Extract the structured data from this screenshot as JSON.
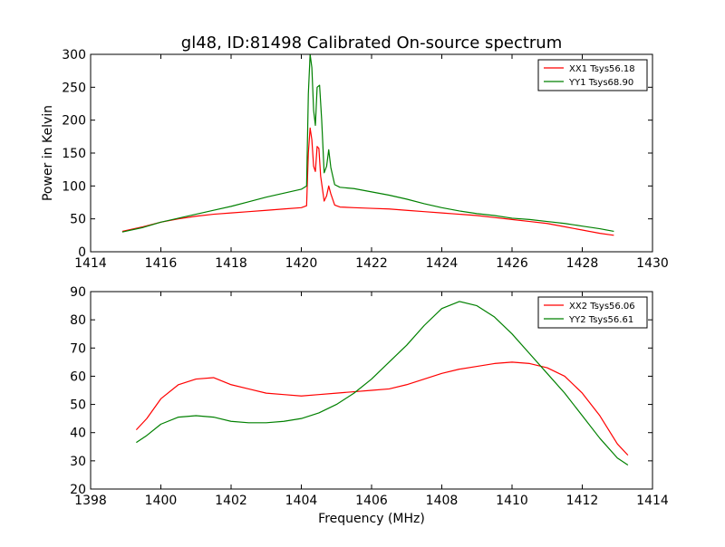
{
  "figure_title": "gl48, ID:81498 Calibrated On-source spectrum",
  "chart_data": [
    {
      "type": "line",
      "title": "gl48, ID:81498 Calibrated On-source spectrum",
      "xlabel": "",
      "ylabel": "Power in Kelvin",
      "xlim": [
        1414,
        1430
      ],
      "ylim": [
        0,
        300
      ],
      "xticks": [
        "1414",
        "1416",
        "1418",
        "1420",
        "1422",
        "1424",
        "1426",
        "1428",
        "1430"
      ],
      "yticks": [
        "0",
        "50",
        "100",
        "150",
        "200",
        "250",
        "300"
      ],
      "grid": false,
      "legend_position": "top-right",
      "series": [
        {
          "name": "XX1 Tsys56.18",
          "color": "#ff0000",
          "points": [
            [
              1414.9,
              31
            ],
            [
              1415.5,
              38
            ],
            [
              1416.0,
              45
            ],
            [
              1416.5,
              50
            ],
            [
              1417.0,
              54
            ],
            [
              1417.5,
              57
            ],
            [
              1418.0,
              59
            ],
            [
              1418.5,
              61
            ],
            [
              1419.0,
              63
            ],
            [
              1419.5,
              65
            ],
            [
              1420.0,
              67
            ],
            [
              1420.15,
              70
            ],
            [
              1420.2,
              150
            ],
            [
              1420.25,
              188
            ],
            [
              1420.3,
              170
            ],
            [
              1420.35,
              130
            ],
            [
              1420.4,
              122
            ],
            [
              1420.45,
              160
            ],
            [
              1420.5,
              157
            ],
            [
              1420.55,
              115
            ],
            [
              1420.65,
              77
            ],
            [
              1420.72,
              85
            ],
            [
              1420.78,
              100
            ],
            [
              1420.84,
              88
            ],
            [
              1420.95,
              71
            ],
            [
              1421.1,
              68
            ],
            [
              1421.5,
              67
            ],
            [
              1422.0,
              66
            ],
            [
              1422.5,
              65
            ],
            [
              1423.0,
              63
            ],
            [
              1423.5,
              61
            ],
            [
              1424.0,
              59
            ],
            [
              1424.5,
              57
            ],
            [
              1425.0,
              55
            ],
            [
              1425.5,
              52
            ],
            [
              1426.0,
              49
            ],
            [
              1426.5,
              46
            ],
            [
              1427.0,
              43
            ],
            [
              1427.5,
              38
            ],
            [
              1428.0,
              33
            ],
            [
              1428.5,
              28
            ],
            [
              1428.9,
              25
            ]
          ]
        },
        {
          "name": "YY1 Tsys68.90",
          "color": "#008000",
          "points": [
            [
              1414.9,
              30
            ],
            [
              1415.5,
              37
            ],
            [
              1416.0,
              45
            ],
            [
              1416.5,
              51
            ],
            [
              1417.0,
              57
            ],
            [
              1417.5,
              63
            ],
            [
              1418.0,
              69
            ],
            [
              1418.5,
              76
            ],
            [
              1419.0,
              83
            ],
            [
              1419.5,
              89
            ],
            [
              1420.0,
              95
            ],
            [
              1420.15,
              100
            ],
            [
              1420.2,
              240
            ],
            [
              1420.25,
              300
            ],
            [
              1420.3,
              280
            ],
            [
              1420.35,
              215
            ],
            [
              1420.4,
              192
            ],
            [
              1420.45,
              250
            ],
            [
              1420.52,
              253
            ],
            [
              1420.58,
              200
            ],
            [
              1420.65,
              120
            ],
            [
              1420.72,
              130
            ],
            [
              1420.78,
              155
            ],
            [
              1420.84,
              128
            ],
            [
              1420.95,
              102
            ],
            [
              1421.1,
              98
            ],
            [
              1421.5,
              96
            ],
            [
              1422.0,
              91
            ],
            [
              1422.5,
              86
            ],
            [
              1423.0,
              80
            ],
            [
              1423.5,
              73
            ],
            [
              1424.0,
              67
            ],
            [
              1424.5,
              62
            ],
            [
              1425.0,
              58
            ],
            [
              1425.5,
              55
            ],
            [
              1426.0,
              51
            ],
            [
              1426.5,
              49
            ],
            [
              1427.0,
              46
            ],
            [
              1427.5,
              43
            ],
            [
              1428.0,
              39
            ],
            [
              1428.5,
              35
            ],
            [
              1428.9,
              31
            ]
          ]
        }
      ]
    },
    {
      "type": "line",
      "title": "",
      "xlabel": "Frequency (MHz)",
      "ylabel": "",
      "xlim": [
        1398,
        1414
      ],
      "ylim": [
        20,
        90
      ],
      "xticks": [
        "1398",
        "1400",
        "1402",
        "1404",
        "1406",
        "1408",
        "1410",
        "1412",
        "1414"
      ],
      "yticks": [
        "20",
        "30",
        "40",
        "50",
        "60",
        "70",
        "80",
        "90"
      ],
      "grid": false,
      "legend_position": "top-right",
      "series": [
        {
          "name": "XX2 Tsys56.06",
          "color": "#ff0000",
          "points": [
            [
              1399.3,
              41
            ],
            [
              1399.6,
              45
            ],
            [
              1400.0,
              52
            ],
            [
              1400.5,
              57
            ],
            [
              1401.0,
              59
            ],
            [
              1401.5,
              59.5
            ],
            [
              1402.0,
              57
            ],
            [
              1402.5,
              55.5
            ],
            [
              1403.0,
              54
            ],
            [
              1403.5,
              53.5
            ],
            [
              1404.0,
              53
            ],
            [
              1404.5,
              53.5
            ],
            [
              1405.0,
              54
            ],
            [
              1405.5,
              54.5
            ],
            [
              1406.0,
              55
            ],
            [
              1406.5,
              55.5
            ],
            [
              1407.0,
              57
            ],
            [
              1407.5,
              59
            ],
            [
              1408.0,
              61
            ],
            [
              1408.5,
              62.5
            ],
            [
              1409.0,
              63.5
            ],
            [
              1409.5,
              64.5
            ],
            [
              1410.0,
              65
            ],
            [
              1410.5,
              64.5
            ],
            [
              1411.0,
              63
            ],
            [
              1411.5,
              60
            ],
            [
              1412.0,
              54
            ],
            [
              1412.5,
              46
            ],
            [
              1413.0,
              36
            ],
            [
              1413.3,
              32
            ]
          ]
        },
        {
          "name": "YY2 Tsys56.61",
          "color": "#008000",
          "points": [
            [
              1399.3,
              36.5
            ],
            [
              1399.6,
              39
            ],
            [
              1400.0,
              43
            ],
            [
              1400.5,
              45.5
            ],
            [
              1401.0,
              46
            ],
            [
              1401.5,
              45.5
            ],
            [
              1402.0,
              44
            ],
            [
              1402.5,
              43.5
            ],
            [
              1403.0,
              43.5
            ],
            [
              1403.5,
              44
            ],
            [
              1404.0,
              45
            ],
            [
              1404.5,
              47
            ],
            [
              1405.0,
              50
            ],
            [
              1405.5,
              54
            ],
            [
              1406.0,
              59
            ],
            [
              1406.5,
              65
            ],
            [
              1407.0,
              71
            ],
            [
              1407.5,
              78
            ],
            [
              1408.0,
              84
            ],
            [
              1408.5,
              86.5
            ],
            [
              1409.0,
              85
            ],
            [
              1409.5,
              81
            ],
            [
              1410.0,
              75
            ],
            [
              1410.5,
              68
            ],
            [
              1411.0,
              61
            ],
            [
              1411.5,
              54
            ],
            [
              1412.0,
              46
            ],
            [
              1412.5,
              38
            ],
            [
              1413.0,
              31
            ],
            [
              1413.3,
              28.5
            ]
          ]
        }
      ]
    }
  ]
}
